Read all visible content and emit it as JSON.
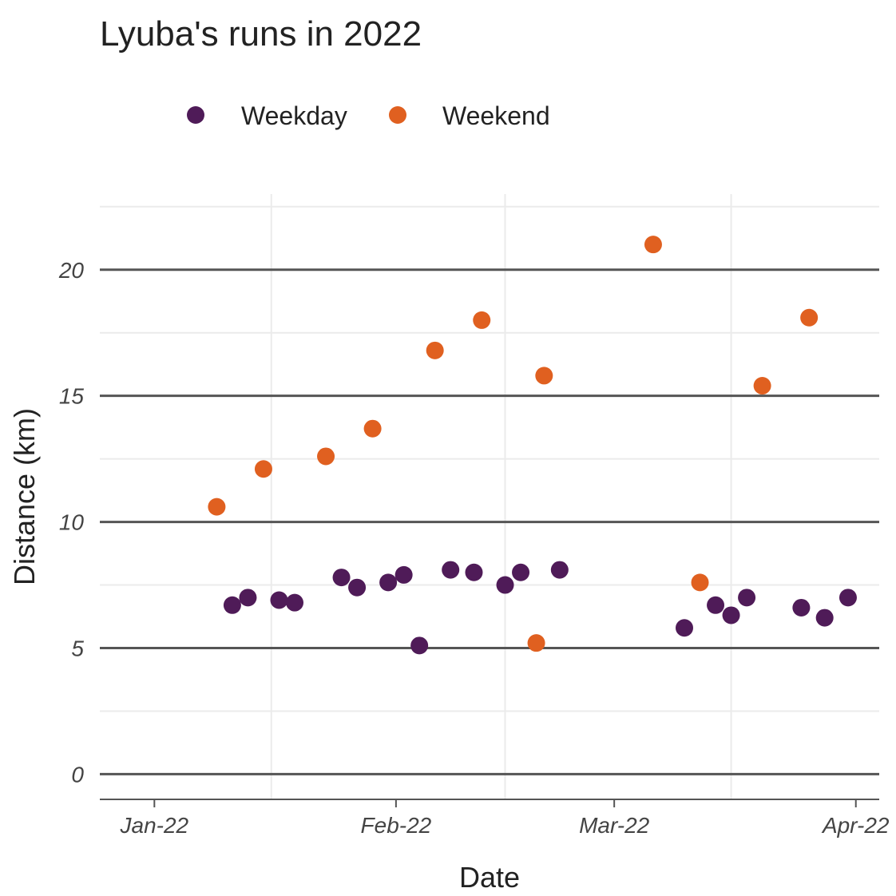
{
  "chart_data": {
    "type": "scatter",
    "title": "Lyuba's runs in 2022",
    "xlabel": "Date",
    "ylabel": "Distance (km)",
    "xlim": [
      "2021-12-25",
      "2022-04-04"
    ],
    "ylim": [
      -1,
      23
    ],
    "x_ticks": [
      {
        "date": "2022-01-01",
        "label": "Jan-22"
      },
      {
        "date": "2022-02-01",
        "label": "Feb-22"
      },
      {
        "date": "2022-03-01",
        "label": "Mar-22"
      },
      {
        "date": "2022-04-01",
        "label": "Apr-22"
      }
    ],
    "x_minor_gridlines": [
      "2022-01-16",
      "2022-02-15",
      "2022-03-16"
    ],
    "y_ticks": [
      0,
      5,
      10,
      15,
      20
    ],
    "y_minor_gridlines": [
      2.5,
      7.5,
      12.5,
      17.5,
      22.5
    ],
    "grid": true,
    "legend_position": "top-left",
    "series": [
      {
        "name": "Weekday",
        "color": "#4f1b58",
        "points": [
          {
            "x": "2022-01-11",
            "y": 6.7
          },
          {
            "x": "2022-01-13",
            "y": 7.0
          },
          {
            "x": "2022-01-17",
            "y": 6.9
          },
          {
            "x": "2022-01-19",
            "y": 6.8
          },
          {
            "x": "2022-01-25",
            "y": 7.8
          },
          {
            "x": "2022-01-27",
            "y": 7.4
          },
          {
            "x": "2022-01-31",
            "y": 7.6
          },
          {
            "x": "2022-02-02",
            "y": 7.9
          },
          {
            "x": "2022-02-04",
            "y": 5.1
          },
          {
            "x": "2022-02-08",
            "y": 8.1
          },
          {
            "x": "2022-02-11",
            "y": 8.0
          },
          {
            "x": "2022-02-15",
            "y": 7.5
          },
          {
            "x": "2022-02-17",
            "y": 8.0
          },
          {
            "x": "2022-02-22",
            "y": 8.1
          },
          {
            "x": "2022-03-10",
            "y": 5.8
          },
          {
            "x": "2022-03-14",
            "y": 6.7
          },
          {
            "x": "2022-03-16",
            "y": 6.3
          },
          {
            "x": "2022-03-18",
            "y": 7.0
          },
          {
            "x": "2022-03-25",
            "y": 6.6
          },
          {
            "x": "2022-03-28",
            "y": 6.2
          },
          {
            "x": "2022-03-31",
            "y": 7.0
          }
        ]
      },
      {
        "name": "Weekend",
        "color": "#e06020",
        "points": [
          {
            "x": "2022-01-09",
            "y": 10.6
          },
          {
            "x": "2022-01-15",
            "y": 12.1
          },
          {
            "x": "2022-01-23",
            "y": 12.6
          },
          {
            "x": "2022-01-29",
            "y": 13.7
          },
          {
            "x": "2022-02-06",
            "y": 16.8
          },
          {
            "x": "2022-02-12",
            "y": 18.0
          },
          {
            "x": "2022-02-19",
            "y": 5.2
          },
          {
            "x": "2022-02-20",
            "y": 15.8
          },
          {
            "x": "2022-03-06",
            "y": 21.0
          },
          {
            "x": "2022-03-12",
            "y": 7.6
          },
          {
            "x": "2022-03-20",
            "y": 15.4
          },
          {
            "x": "2022-03-26",
            "y": 18.1
          }
        ]
      }
    ]
  }
}
